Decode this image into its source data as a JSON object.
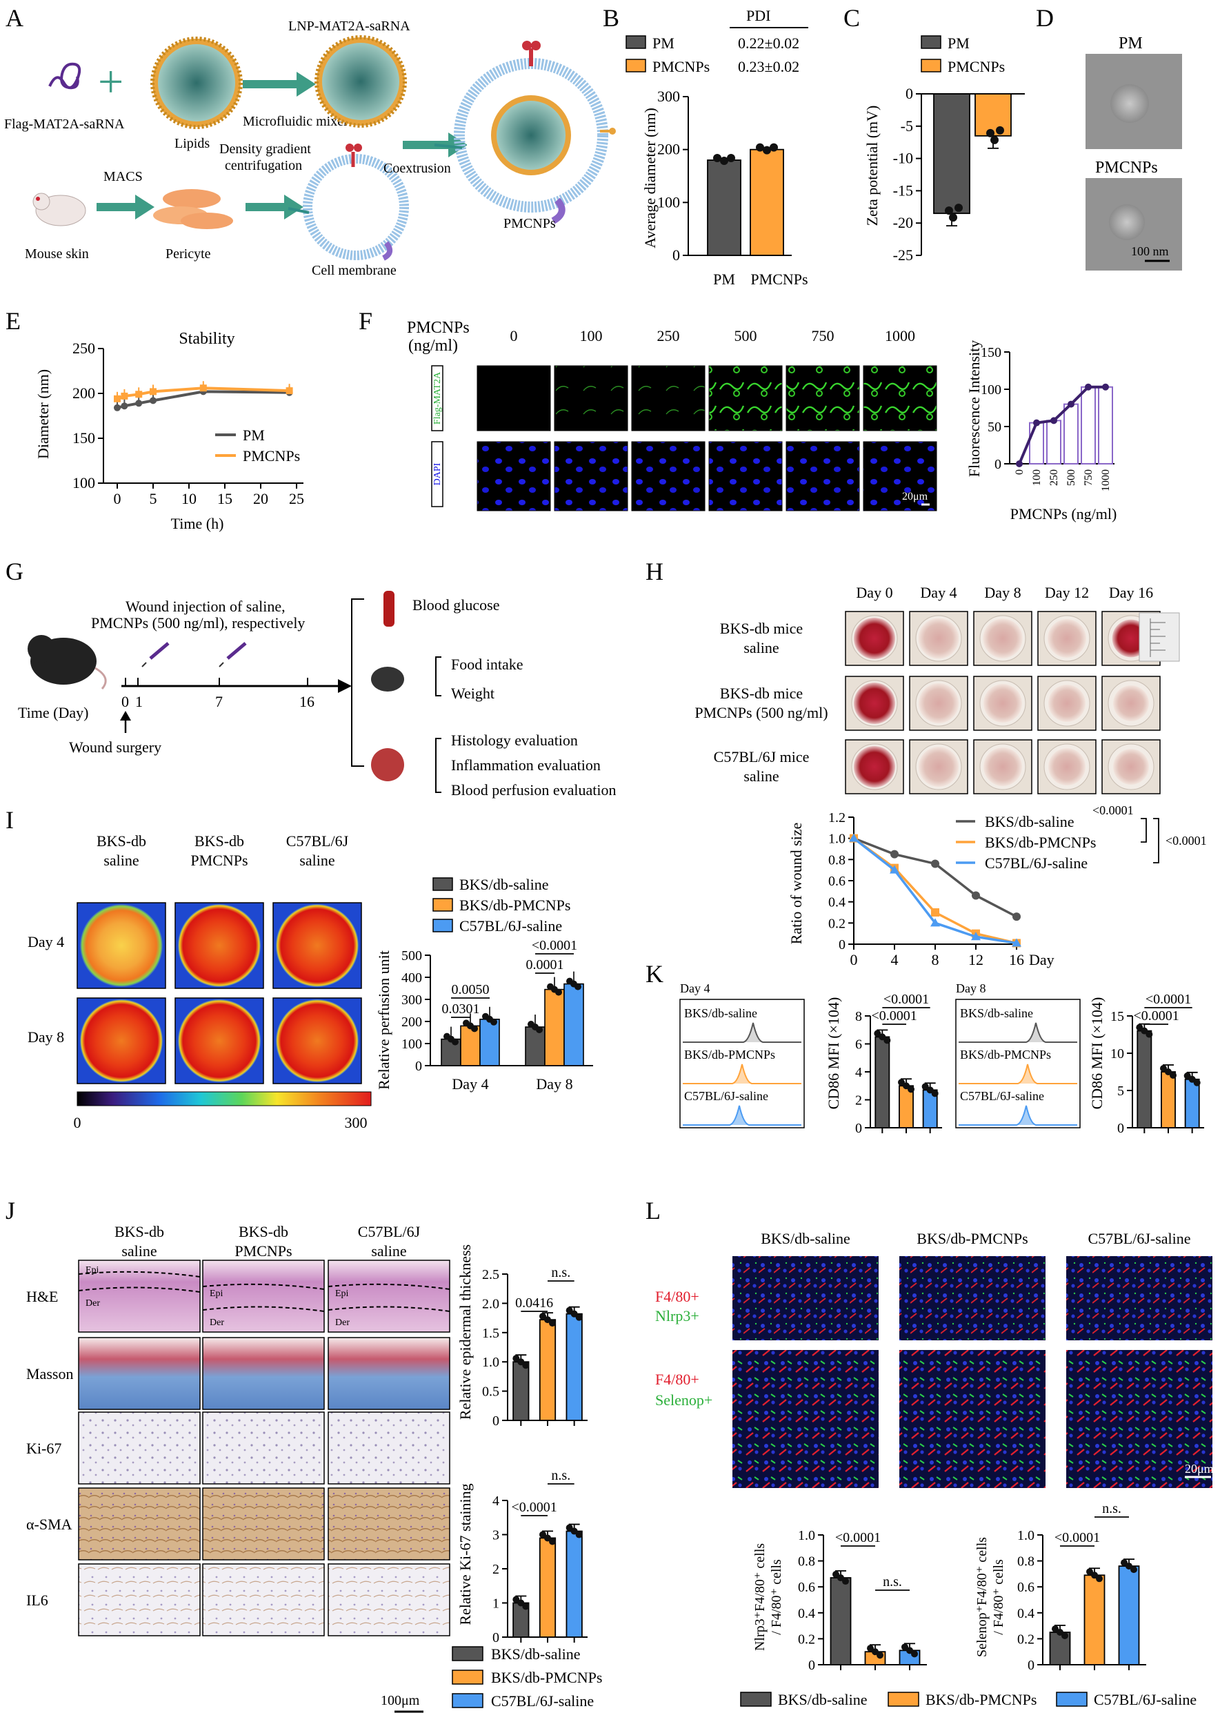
{
  "colors": {
    "gray": "#555555",
    "orange": "#FFA33A",
    "blue": "#4C9BF2",
    "purple": "#8A67C8",
    "purpleLine": "#3B1F6B",
    "green": "#3E9C86",
    "nuc": "#1414E6",
    "red": "#E11E2D",
    "greenText": "#2BAF3A"
  },
  "panels": {
    "A": "A",
    "B": "B",
    "C": "C",
    "D": "D",
    "E": "E",
    "F": "F",
    "G": "G",
    "H": "H",
    "I": "I",
    "J": "J",
    "K": "K",
    "L": "L"
  },
  "A": {
    "flag": "Flag-MAT2A-saRNA",
    "lipids": "Lipids",
    "mixer": "Microfluidic mixer",
    "lnp": "LNP-MAT2A-saRNA",
    "mouse": "Mouse skin",
    "macs": "MACS",
    "pericyte": "Pericyte",
    "density1": "Density gradient",
    "density2": "centrifugation",
    "membrane": "Cell membrane",
    "coext": "Coextrusion",
    "pmcnps": "PMCNPs"
  },
  "D": {
    "pm": "PM",
    "pmcnps": "PMCNPs",
    "scale": "100 nm"
  },
  "F": {
    "header1": "PMCNPs",
    "header2": "(ng/ml)",
    "concs": [
      "0",
      "100",
      "250",
      "500",
      "750",
      "1000"
    ],
    "row1": "Flag-MAT2A",
    "row2": "DAPI",
    "scale": "20μm"
  },
  "G": {
    "inj1": "Wound injection of saline,",
    "inj2": "PMCNPs (500 ng/ml), respectively",
    "timeLabel": "Time (Day)",
    "ticks": [
      "0",
      "1",
      "7",
      "16"
    ],
    "surgery": "Wound surgery",
    "glucose": "Blood glucose",
    "food": "Food intake",
    "weight": "Weight",
    "histo": "Histology evaluation",
    "inflam": "Inflammation evaluation",
    "perf": "Blood perfusion evaluation"
  },
  "H": {
    "days": [
      "Day 0",
      "Day 4",
      "Day 8",
      "Day 12",
      "Day 16"
    ],
    "rows": [
      [
        "BKS-db mice",
        "saline"
      ],
      [
        "BKS-db mice",
        "PMCNPs (500 ng/ml)"
      ],
      [
        "C57BL/6J mice",
        "saline"
      ]
    ]
  },
  "I": {
    "cols": [
      [
        "BKS-db",
        "saline"
      ],
      [
        "BKS-db",
        "PMCNPs"
      ],
      [
        "C57BL/6J",
        "saline"
      ]
    ],
    "rows": [
      "Day 4",
      "Day 8"
    ],
    "scaleMin": "0",
    "scaleMax": "300"
  },
  "J": {
    "cols": [
      [
        "BKS-db",
        "saline"
      ],
      [
        "BKS-db",
        "PMCNPs"
      ],
      [
        "C57BL/6J",
        "saline"
      ]
    ],
    "rows": [
      "H&E",
      "Masson",
      "Ki-67",
      "α-SMA",
      "IL6"
    ],
    "epi": "Epi",
    "der": "Der",
    "scale": "100μm"
  },
  "K": {
    "day4": "Day 4",
    "day8": "Day 8",
    "g1": "BKS/db-saline",
    "g2": "BKS/db-PMCNPs",
    "g3": "C57BL/6J-saline"
  },
  "L": {
    "cols": [
      "BKS/db-saline",
      "BKS/db-PMCNPs",
      "C57BL/6J-saline"
    ],
    "row1a": "F4/80+",
    "row1b": "Nlrp3+",
    "row2a": "F4/80+",
    "row2b": "Selenop+",
    "scale": "20μm"
  },
  "legendBottom": [
    "BKS/db-saline",
    "BKS/db-PMCNPs",
    "C57BL/6J-saline"
  ],
  "chart_data": [
    {
      "id": "B",
      "type": "bar",
      "categories": [
        "PM",
        "PMCNPs"
      ],
      "values": [
        180,
        200
      ],
      "ylabel": "Average diameter (nm)",
      "ylim": [
        0,
        300
      ],
      "yticks": [
        0,
        100,
        200,
        300
      ],
      "legend": [
        "PM",
        "PMCNPs"
      ],
      "pdi_header": "PDI",
      "pdi": [
        "0.22±0.02",
        "0.23±0.02"
      ]
    },
    {
      "id": "C",
      "type": "bar",
      "categories": [
        "PM",
        "PMCNPs"
      ],
      "values": [
        -18.5,
        -6.5
      ],
      "ylabel": "Zeta potential (mV)",
      "ylim": [
        -25,
        0
      ],
      "yticks": [
        0,
        -5,
        -10,
        -15,
        -20,
        -25
      ],
      "legend": [
        "PM",
        "PMCNPs"
      ]
    },
    {
      "id": "E",
      "type": "line",
      "title": "Stability",
      "x": [
        0,
        1,
        3,
        5,
        12,
        24
      ],
      "xlabel": "Time (h)",
      "ylabel": "Diameter (nm)",
      "ylim": [
        100,
        250
      ],
      "xticks": [
        0,
        5,
        10,
        15,
        20,
        25
      ],
      "yticks": [
        100,
        150,
        200,
        250
      ],
      "series": [
        {
          "name": "PM",
          "values": [
            184,
            186,
            189,
            192,
            202,
            201
          ]
        },
        {
          "name": "PMCNPs",
          "values": [
            194,
            197,
            199,
            202,
            206,
            203
          ]
        }
      ]
    },
    {
      "id": "F",
      "type": "bar",
      "categories": [
        "0",
        "100",
        "250",
        "500",
        "750",
        "1000"
      ],
      "values": [
        0,
        55,
        58,
        80,
        103,
        103
      ],
      "xlabel": "PMCNPs (ng/ml)",
      "ylabel": "Fluorescence Intensity",
      "ylim": [
        0,
        150
      ],
      "yticks": [
        0,
        50,
        100,
        150
      ]
    },
    {
      "id": "H",
      "type": "line",
      "x": [
        0,
        4,
        8,
        12,
        16
      ],
      "xlabel": "Day",
      "ylabel": "Ratio of wound size",
      "ylim": [
        0,
        1.2
      ],
      "yticks": [
        0,
        0.2,
        0.4,
        0.6,
        0.8,
        1.0,
        1.2
      ],
      "xticks": [
        0,
        4,
        8,
        12,
        16
      ],
      "series": [
        {
          "name": "BKS/db-saline",
          "values": [
            1.0,
            0.85,
            0.76,
            0.46,
            0.26
          ]
        },
        {
          "name": "BKS/db-PMCNPs",
          "values": [
            1.0,
            0.72,
            0.3,
            0.1,
            0.01
          ]
        },
        {
          "name": "C57BL/6J-saline",
          "values": [
            1.0,
            0.7,
            0.2,
            0.07,
            0.01
          ]
        }
      ],
      "pvals": [
        "<0.0001",
        "<0.0001"
      ]
    },
    {
      "id": "I",
      "type": "bar",
      "categories": [
        "Day 4",
        "Day 8"
      ],
      "ylabel": "Relative perfusion unit",
      "ylim": [
        0,
        500
      ],
      "yticks": [
        0,
        100,
        200,
        300,
        400,
        500
      ],
      "series": [
        {
          "name": "BKS/db-saline",
          "values": [
            120,
            175
          ]
        },
        {
          "name": "BKS/db-PMCNPs",
          "values": [
            180,
            345
          ]
        },
        {
          "name": "C57BL/6J-saline",
          "values": [
            210,
            370
          ]
        }
      ],
      "pvals": [
        "0.0301",
        "0.0050",
        "0.0001",
        "<0.0001"
      ]
    },
    {
      "id": "K4",
      "type": "bar",
      "categories": [
        "BKS/db-saline",
        "BKS/db-PMCNPs",
        "C57BL/6J-saline"
      ],
      "values": [
        6.5,
        3.0,
        2.7
      ],
      "ylabel": "CD86 MFI (×104)",
      "ylim": [
        0,
        8
      ],
      "yticks": [
        0,
        2,
        4,
        6,
        8
      ],
      "pvals": [
        "<0.0001",
        "<0.0001"
      ]
    },
    {
      "id": "K8",
      "type": "bar",
      "categories": [
        "BKS/db-saline",
        "BKS/db-PMCNPs",
        "C57BL/6J-saline"
      ],
      "values": [
        13,
        7.5,
        6.5
      ],
      "ylabel": "CD86 MFI (×104)",
      "ylim": [
        0,
        15
      ],
      "yticks": [
        0,
        5,
        10,
        15
      ],
      "pvals": [
        "<0.0001",
        "<0.0001"
      ]
    },
    {
      "id": "J1",
      "type": "bar",
      "categories": [
        "BKS/db-saline",
        "BKS/db-PMCNPs",
        "C57BL/6J-saline"
      ],
      "values": [
        1.0,
        1.72,
        1.82
      ],
      "ylabel": "Relative epidermal thickness",
      "ylim": [
        0,
        2.5
      ],
      "yticks": [
        0,
        0.5,
        1.0,
        1.5,
        2.0,
        2.5
      ],
      "pvals": [
        "0.0416",
        "n.s."
      ]
    },
    {
      "id": "J2",
      "type": "bar",
      "categories": [
        "BKS/db-saline",
        "BKS/db-PMCNPs",
        "C57BL/6J-saline"
      ],
      "values": [
        1.0,
        2.9,
        3.1
      ],
      "ylabel": "Relative Ki-67 staining",
      "ylim": [
        0,
        4
      ],
      "yticks": [
        0,
        1,
        2,
        3,
        4
      ],
      "pvals": [
        "<0.0001",
        "n.s."
      ]
    },
    {
      "id": "L1",
      "type": "bar",
      "categories": [
        "BKS/db-saline",
        "BKS/db-PMCNPs",
        "C57BL/6J-saline"
      ],
      "values": [
        0.67,
        0.1,
        0.11
      ],
      "ylabel1": "Nlrp3⁺F4/80⁺ cells",
      "ylabel2": "/ F4/80⁺ cells",
      "ylim": [
        0,
        1.0
      ],
      "yticks": [
        0,
        0.2,
        0.4,
        0.6,
        0.8,
        1.0
      ],
      "pvals": [
        "<0.0001",
        "n.s."
      ]
    },
    {
      "id": "L2",
      "type": "bar",
      "categories": [
        "BKS/db-saline",
        "BKS/db-PMCNPs",
        "C57BL/6J-saline"
      ],
      "values": [
        0.25,
        0.69,
        0.76
      ],
      "ylabel1": "Selenop⁺F4/80⁺ cells",
      "ylabel2": "/ F4/80⁺ cells",
      "ylim": [
        0,
        1.0
      ],
      "yticks": [
        0,
        0.2,
        0.4,
        0.6,
        0.8,
        1.0
      ],
      "pvals": [
        "<0.0001",
        "n.s."
      ]
    }
  ]
}
